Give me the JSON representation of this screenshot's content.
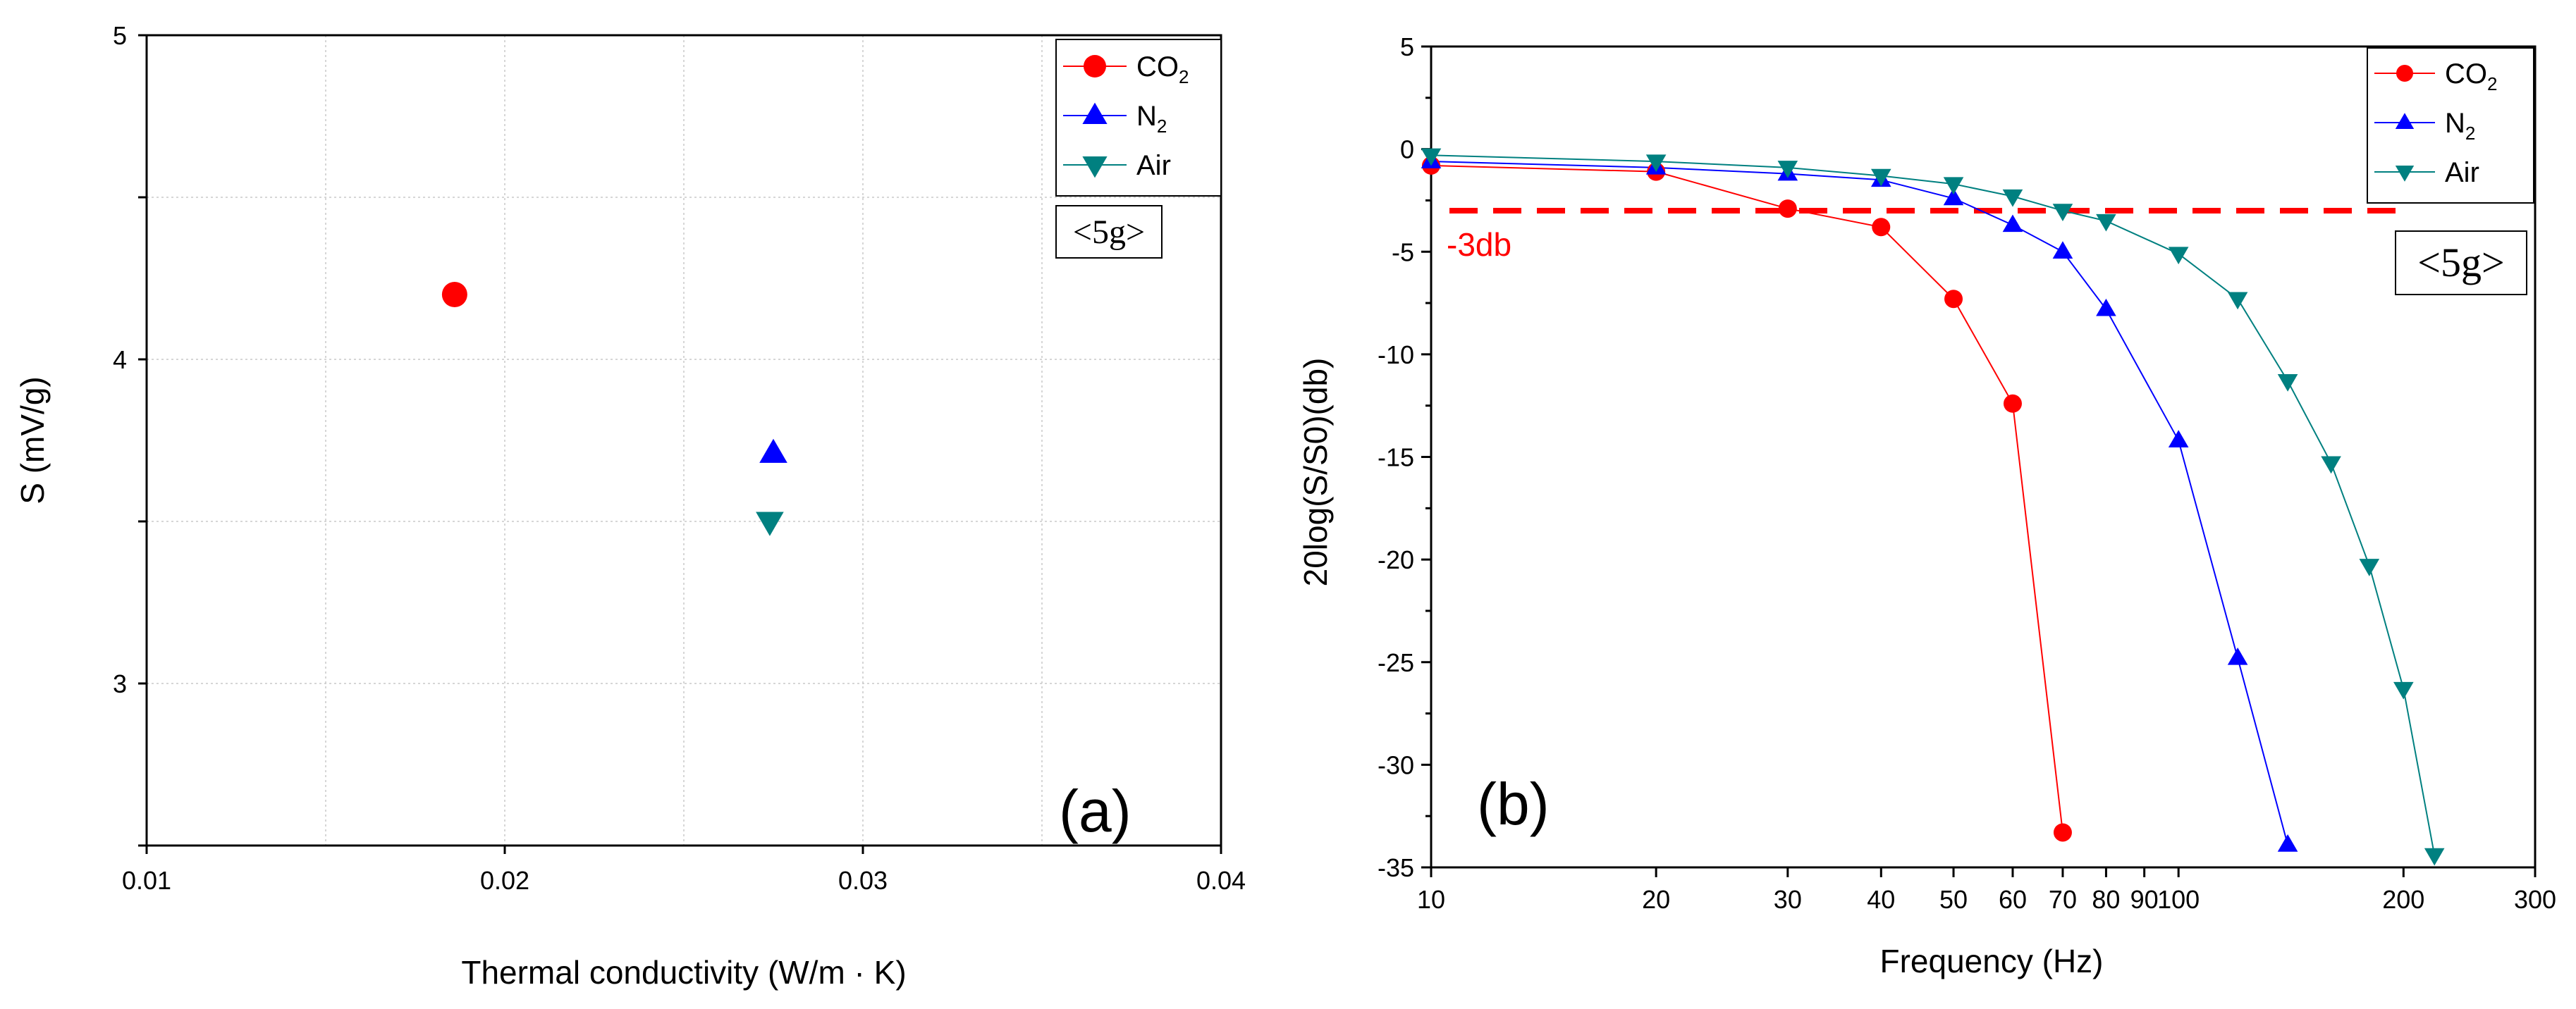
{
  "colors": {
    "co2": "#ff0000",
    "n2": "#0000ff",
    "air": "#008080",
    "grid": "#c8c8c8",
    "cutoff": "#ff0000"
  },
  "chart_data": [
    {
      "type": "scatter",
      "panel_label": "(a)",
      "box_label": "<5g>",
      "xlabel": "Thermal conductivity (W/m · K)",
      "ylabel": "S (mV/g)",
      "xlim": [
        0.01,
        0.04
      ],
      "ylim": [
        2.5,
        5
      ],
      "xticks": [
        "0.01",
        "0.02",
        "0.03",
        "0.04"
      ],
      "yticks": [
        "3",
        "4",
        "5"
      ],
      "grid": true,
      "legend_position": "top-right",
      "series": [
        {
          "name": "CO",
          "sub": "2",
          "marker": "circle",
          "color": "#ff0000",
          "points": [
            [
              0.0186,
              4.2
            ]
          ]
        },
        {
          "name": "N",
          "sub": "2",
          "marker": "triangle-up",
          "color": "#0000ff",
          "points": [
            [
              0.0275,
              3.71
            ]
          ]
        },
        {
          "name": "Air",
          "sub": "",
          "marker": "triangle-down",
          "color": "#008080",
          "points": [
            [
              0.0274,
              3.5
            ]
          ]
        }
      ]
    },
    {
      "type": "line",
      "panel_label": "(b)",
      "box_label": "<5g>",
      "xlabel": "Frequency (Hz)",
      "ylabel": "20log(S/S0)(db)",
      "xscale": "log",
      "xlim": [
        10,
        300
      ],
      "ylim": [
        -35,
        5
      ],
      "xticks": [
        "10",
        "20",
        "30",
        "40",
        "50",
        "60",
        "70",
        "80",
        "90",
        "100",
        "200",
        "300"
      ],
      "yticks": [
        "5",
        "0",
        "-5",
        "-10",
        "-15",
        "-20",
        "-25",
        "-30",
        "-35"
      ],
      "grid": false,
      "legend_position": "top-right",
      "cutoff": {
        "label": "-3db",
        "y": -3
      },
      "series": [
        {
          "name": "CO",
          "sub": "2",
          "marker": "circle",
          "color": "#ff0000",
          "x": [
            10,
            20,
            30,
            40,
            50,
            60,
            70
          ],
          "y": [
            -0.8,
            -1.1,
            -2.9,
            -3.8,
            -7.3,
            -12.4,
            -33.3
          ]
        },
        {
          "name": "N",
          "sub": "2",
          "marker": "triangle-up",
          "color": "#0000ff",
          "x": [
            10,
            20,
            30,
            40,
            50,
            60,
            70,
            80,
            100,
            120,
            140
          ],
          "y": [
            -0.6,
            -0.9,
            -1.2,
            -1.5,
            -2.4,
            -3.7,
            -5.0,
            -7.8,
            -14.2,
            -24.8,
            -33.9
          ]
        },
        {
          "name": "Air",
          "sub": "",
          "marker": "triangle-down",
          "color": "#008080",
          "x": [
            10,
            20,
            30,
            40,
            50,
            60,
            70,
            80,
            100,
            120,
            140,
            160,
            180,
            200,
            220
          ],
          "y": [
            -0.3,
            -0.6,
            -0.9,
            -1.3,
            -1.7,
            -2.3,
            -3.0,
            -3.5,
            -5.1,
            -7.3,
            -11.3,
            -15.3,
            -20.3,
            -26.3,
            -34.4
          ]
        }
      ]
    }
  ]
}
